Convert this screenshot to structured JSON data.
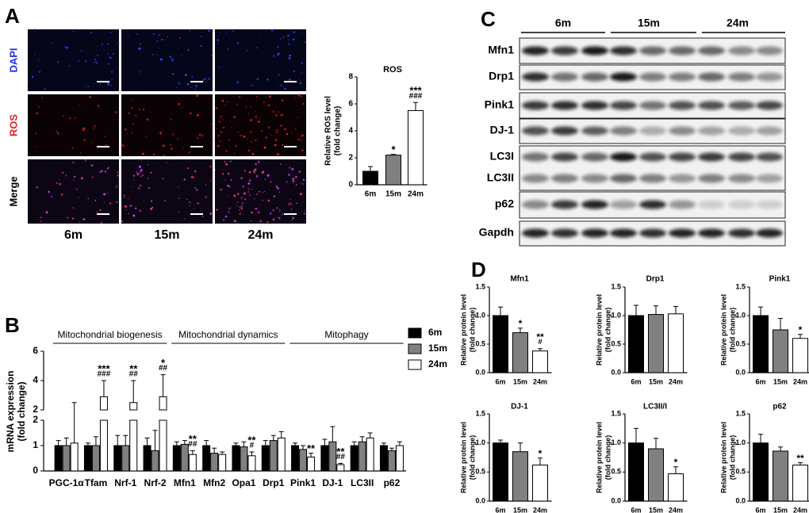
{
  "figure": {
    "labels": [
      "A",
      "B",
      "C",
      "D"
    ],
    "image_rows": [
      "DAPI",
      "ROS",
      "Merge"
    ],
    "image_cols": [
      "6m",
      "15m",
      "24m"
    ],
    "blot_groups": [
      "6m",
      "15m",
      "24m"
    ],
    "blot_rows": [
      "Mfn1",
      "Drp1",
      "Pink1",
      "DJ-1",
      "LC3I",
      "LC3II",
      "p62",
      "Gapdh"
    ]
  },
  "chart_data": [
    {
      "type": "bar",
      "title": "ROS",
      "ylabel": [
        "Relative ROS level",
        "(fold change)"
      ],
      "categories": [
        "6m",
        "15m",
        "24m"
      ],
      "values": [
        1.0,
        2.2,
        5.5
      ],
      "errors": [
        0.35,
        0.05,
        0.6
      ],
      "colors": [
        "#000000",
        "#808080",
        "#ffffff"
      ],
      "annotations": [
        [],
        [
          "*"
        ],
        [
          "***",
          "###"
        ]
      ],
      "ylim": [
        0,
        8
      ],
      "yticks": [
        0,
        2,
        4,
        6,
        8
      ]
    },
    {
      "type": "grouped-bar",
      "ylabel": [
        "mRNA expression",
        "(fold change)"
      ],
      "group_labels": [
        "Mitochondrial biogenesis",
        "Mitochondrial dynamics",
        "Mitophagy"
      ],
      "categories": [
        "PGC-1α",
        "Tfam",
        "Nrf-1",
        "Nrf-2",
        "Mfn1",
        "Mfn2",
        "Opa1",
        "Drp1",
        "Pink1",
        "DJ-1",
        "LC3II",
        "p62"
      ],
      "series": [
        {
          "name": "6m",
          "color": "#000000",
          "values": [
            1.0,
            1.0,
            1.0,
            1.0,
            1.0,
            1.0,
            1.0,
            1.0,
            1.0,
            1.0,
            1.0,
            1.0
          ],
          "errors": [
            0.2,
            0.1,
            0.4,
            0.3,
            0.15,
            0.2,
            0.1,
            0.2,
            0.1,
            0.25,
            0.15,
            0.1
          ]
        },
        {
          "name": "15m",
          "color": "#808080",
          "values": [
            1.0,
            1.0,
            1.0,
            0.8,
            1.05,
            0.7,
            0.95,
            1.2,
            0.85,
            1.15,
            1.15,
            0.8
          ],
          "errors": [
            0.3,
            0.35,
            0.4,
            0.8,
            0.15,
            0.2,
            0.2,
            0.2,
            0.15,
            0.6,
            0.2,
            0.1
          ]
        },
        {
          "name": "24m",
          "color": "#ffffff",
          "values": [
            1.1,
            2.9,
            2.5,
            2.9,
            0.65,
            0.65,
            0.6,
            1.3,
            0.55,
            0.25,
            1.3,
            1.0
          ],
          "errors": [
            1.4,
            1.1,
            1.5,
            1.5,
            0.15,
            0.1,
            0.15,
            0.25,
            0.15,
            0.05,
            0.2,
            0.15
          ],
          "annotations": [
            [],
            [
              "***",
              "###"
            ],
            [
              "**",
              "##"
            ],
            [
              "*",
              "##"
            ],
            [
              "**",
              "##"
            ],
            [],
            [
              "**",
              "#"
            ],
            [],
            [
              "**"
            ],
            [
              "**",
              "##"
            ],
            [],
            []
          ]
        }
      ],
      "segments": [
        {
          "ylim": [
            0,
            2
          ],
          "yticks": [
            0,
            1,
            2
          ]
        },
        {
          "ylim": [
            2,
            6
          ],
          "yticks": [
            2,
            4,
            6
          ]
        }
      ]
    },
    {
      "type": "bar",
      "title": "Mfn1",
      "ylabel": [
        "Relative protein level",
        "(fold change)"
      ],
      "categories": [
        "6m",
        "15m",
        "24m"
      ],
      "values": [
        1.0,
        0.7,
        0.38
      ],
      "errors": [
        0.15,
        0.08,
        0.04
      ],
      "colors": [
        "#000000",
        "#808080",
        "#ffffff"
      ],
      "annotations": [
        [],
        [
          "*"
        ],
        [
          "**",
          "#"
        ]
      ],
      "ylim": [
        0,
        1.5
      ],
      "yticks": [
        {
          "value": 0,
          "label": "0.0"
        },
        {
          "value": 0.5,
          "label": "0.5"
        },
        {
          "value": 1,
          "label": "1.0"
        },
        {
          "value": 1.5,
          "label": "1.5"
        }
      ]
    },
    {
      "type": "bar",
      "title": "Drp1",
      "ylabel": [
        "Relative protein level",
        "(fold change)"
      ],
      "categories": [
        "6m",
        "15m",
        "24m"
      ],
      "values": [
        1.0,
        1.02,
        1.03
      ],
      "errors": [
        0.18,
        0.15,
        0.13
      ],
      "colors": [
        "#000000",
        "#808080",
        "#ffffff"
      ],
      "annotations": [
        [],
        [],
        []
      ],
      "ylim": [
        0,
        1.5
      ],
      "yticks": [
        {
          "value": 0,
          "label": "0.0"
        },
        {
          "value": 0.5,
          "label": "0.5"
        },
        {
          "value": 1,
          "label": "1.0"
        },
        {
          "value": 1.5,
          "label": "1.5"
        }
      ]
    },
    {
      "type": "bar",
      "title": "Pink1",
      "ylabel": [
        "Relative protein level",
        "(fold change)"
      ],
      "categories": [
        "6m",
        "15m",
        "24m"
      ],
      "values": [
        1.0,
        0.75,
        0.6
      ],
      "errors": [
        0.15,
        0.2,
        0.07
      ],
      "colors": [
        "#000000",
        "#808080",
        "#ffffff"
      ],
      "annotations": [
        [],
        [],
        [
          "*"
        ]
      ],
      "ylim": [
        0,
        1.5
      ],
      "yticks": [
        {
          "value": 0,
          "label": "0.0"
        },
        {
          "value": 0.5,
          "label": "0.5"
        },
        {
          "value": 1,
          "label": "1.0"
        },
        {
          "value": 1.5,
          "label": "1.5"
        }
      ]
    },
    {
      "type": "bar",
      "title": "DJ-1",
      "ylabel": [
        "Relative protein level",
        "(fold change)"
      ],
      "categories": [
        "6m",
        "15m",
        "24m"
      ],
      "values": [
        1.0,
        0.85,
        0.62
      ],
      "errors": [
        0.05,
        0.15,
        0.12
      ],
      "colors": [
        "#000000",
        "#808080",
        "#ffffff"
      ],
      "annotations": [
        [],
        [],
        [
          "*"
        ]
      ],
      "ylim": [
        0,
        1.5
      ],
      "yticks": [
        {
          "value": 0,
          "label": "0.0"
        },
        {
          "value": 0.5,
          "label": "0.5"
        },
        {
          "value": 1,
          "label": "1.0"
        },
        {
          "value": 1.5,
          "label": "1.5"
        }
      ]
    },
    {
      "type": "bar",
      "title": "LC3II/I",
      "ylabel": [
        "Relative protein level",
        "(fold change)"
      ],
      "categories": [
        "6m",
        "15m",
        "24m"
      ],
      "values": [
        1.0,
        0.9,
        0.47
      ],
      "errors": [
        0.25,
        0.18,
        0.12
      ],
      "colors": [
        "#000000",
        "#808080",
        "#ffffff"
      ],
      "annotations": [
        [],
        [],
        [
          "*"
        ]
      ],
      "ylim": [
        0,
        1.5
      ],
      "yticks": [
        {
          "value": 0,
          "label": "0.0"
        },
        {
          "value": 0.5,
          "label": "0.5"
        },
        {
          "value": 1,
          "label": "1.0"
        },
        {
          "value": 1.5,
          "label": "1.5"
        }
      ]
    },
    {
      "type": "bar",
      "title": "p62",
      "ylabel": [
        "Relative protein level",
        "(fold change)"
      ],
      "categories": [
        "6m",
        "15m",
        "24m"
      ],
      "values": [
        1.0,
        0.86,
        0.62
      ],
      "errors": [
        0.15,
        0.07,
        0.04
      ],
      "colors": [
        "#000000",
        "#808080",
        "#ffffff"
      ],
      "annotations": [
        [],
        [],
        [
          "**"
        ]
      ],
      "ylim": [
        0,
        1.5
      ],
      "yticks": [
        {
          "value": 0,
          "label": "0.0"
        },
        {
          "value": 0.5,
          "label": "0.5"
        },
        {
          "value": 1,
          "label": "1.0"
        },
        {
          "value": 1.5,
          "label": "1.5"
        }
      ]
    }
  ]
}
